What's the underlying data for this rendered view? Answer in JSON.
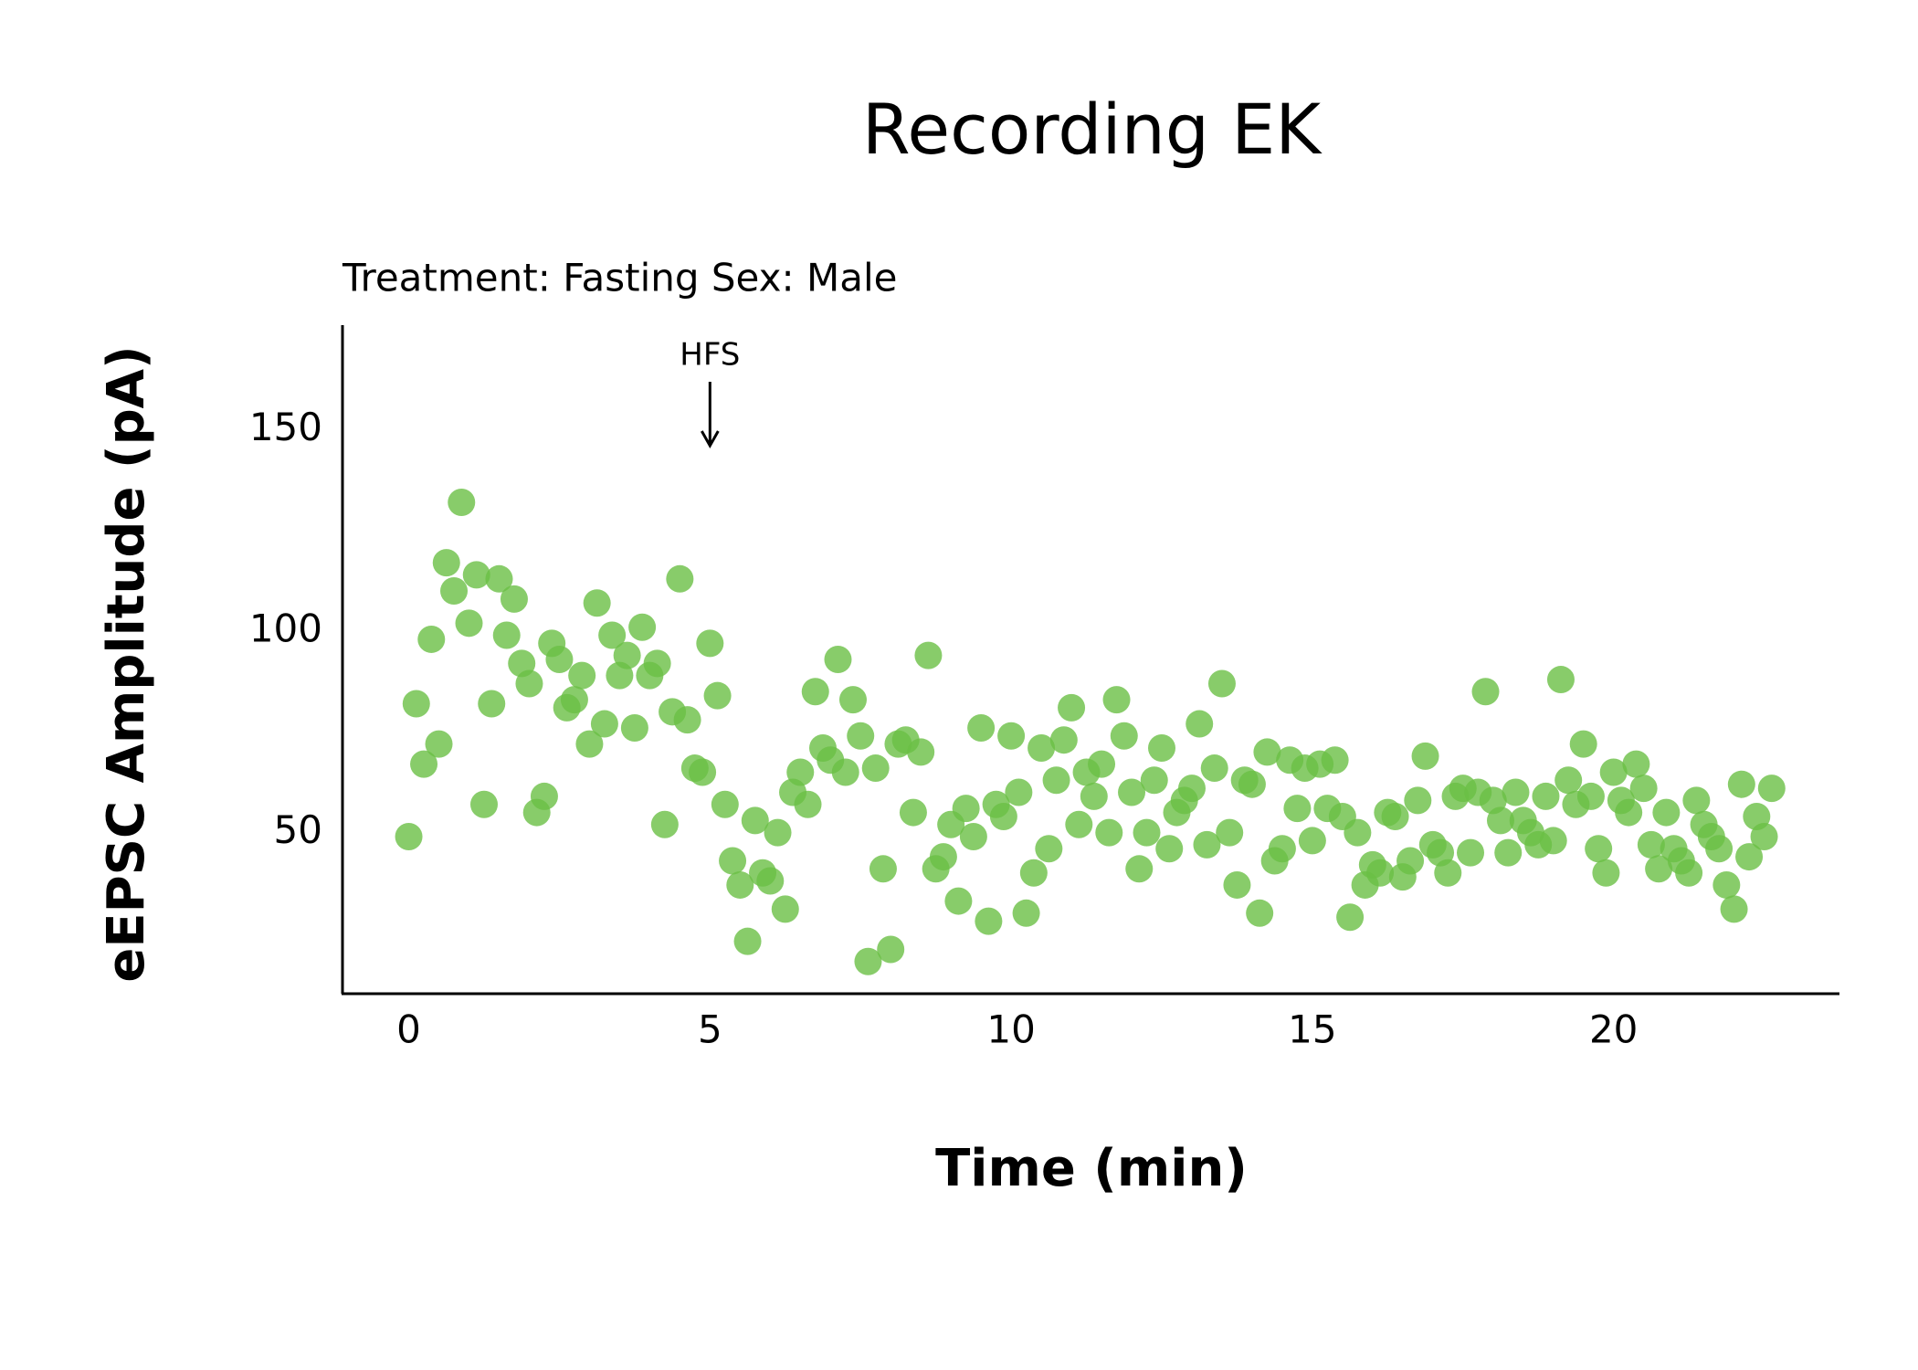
{
  "chart_data": {
    "type": "scatter",
    "title": "Recording EK",
    "subtitle": "Treatment: Fasting  Sex: Male",
    "x_label": "Time (min)",
    "y_label": "eEPSC Amplitude (pA)",
    "annotations": [
      {
        "text": "HFS",
        "x": 5
      }
    ],
    "xlim": [
      -1.1,
      23.75
    ],
    "ylim": [
      10,
      176
    ],
    "xticks": [
      0,
      5,
      10,
      15,
      20
    ],
    "yticks": [
      50,
      100,
      150
    ],
    "grid": false,
    "series": [
      {
        "color": "#6abf45",
        "x": [
          0,
          0.125,
          0.25,
          0.375,
          0.5,
          0.625,
          0.75,
          0.875,
          1,
          1.125,
          1.25,
          1.375,
          1.5,
          1.625,
          1.75,
          1.875,
          2,
          2.125,
          2.25,
          2.375,
          2.5,
          2.625,
          2.75,
          2.875,
          3,
          3.125,
          3.25,
          3.375,
          3.5,
          3.625,
          3.75,
          3.875,
          4,
          4.125,
          4.25,
          4.375,
          4.5,
          4.625,
          4.75,
          4.875,
          5,
          5.125,
          5.25,
          5.375,
          5.5,
          5.625,
          5.75,
          5.875,
          6,
          6.125,
          6.25,
          6.375,
          6.5,
          6.625,
          6.75,
          6.875,
          7,
          7.125,
          7.25,
          7.375,
          7.5,
          7.625,
          7.75,
          7.875,
          8,
          8.125,
          8.25,
          8.375,
          8.5,
          8.625,
          8.75,
          8.875,
          9,
          9.125,
          9.25,
          9.375,
          9.5,
          9.625,
          9.75,
          9.875,
          10,
          10.125,
          10.25,
          10.375,
          10.5,
          10.625,
          10.75,
          10.875,
          11,
          11.125,
          11.25,
          11.375,
          11.5,
          11.625,
          11.75,
          11.875,
          12,
          12.125,
          12.25,
          12.375,
          12.5,
          12.625,
          12.75,
          12.875,
          13,
          13.125,
          13.25,
          13.375,
          13.5,
          13.625,
          13.75,
          13.875,
          14,
          14.125,
          14.25,
          14.375,
          14.5,
          14.625,
          14.75,
          14.875,
          15,
          15.125,
          15.25,
          15.375,
          15.5,
          15.625,
          15.75,
          15.875,
          16,
          16.125,
          16.25,
          16.375,
          16.5,
          16.625,
          16.75,
          16.875,
          17,
          17.125,
          17.25,
          17.375,
          17.5,
          17.625,
          17.75,
          17.875,
          18,
          18.125,
          18.25,
          18.375,
          18.5,
          18.625,
          18.75,
          18.875,
          19,
          19.125,
          19.25,
          19.375,
          19.5,
          19.625,
          19.75,
          19.875,
          20,
          20.125,
          20.25,
          20.375,
          20.5,
          20.625,
          20.75,
          20.875,
          21,
          21.125,
          21.25,
          21.375,
          21.5,
          21.625,
          21.75,
          21.875,
          22,
          22.125,
          22.25,
          22.375,
          22.5,
          22.625
        ],
        "values": [
          49,
          82,
          67,
          98,
          72,
          117,
          110,
          132,
          102,
          114,
          57,
          82,
          113,
          99,
          108,
          92,
          87,
          55,
          59,
          97,
          93,
          81,
          83,
          89,
          72,
          107,
          77,
          99,
          89,
          94,
          76,
          101,
          89,
          92,
          52,
          80,
          113,
          78,
          66,
          65,
          97,
          84,
          57,
          43,
          37,
          23,
          53,
          40,
          38,
          50,
          31,
          60,
          65,
          57,
          85,
          71,
          68,
          93,
          65,
          83,
          74,
          18,
          66,
          41,
          21,
          72,
          73,
          55,
          70,
          94,
          41,
          44,
          52,
          33,
          56,
          49,
          76,
          28,
          57,
          54,
          74,
          60,
          30,
          40,
          71,
          46,
          63,
          73,
          81,
          52,
          65,
          59,
          67,
          50,
          83,
          74,
          60,
          41,
          50,
          63,
          71,
          46,
          55,
          58,
          61,
          77,
          47,
          66,
          87,
          50,
          37,
          63,
          62,
          30,
          70,
          43,
          46,
          68,
          56,
          66,
          48,
          67,
          56,
          68,
          54,
          29,
          50,
          37,
          42,
          40,
          55,
          54,
          39,
          43,
          58,
          69,
          47,
          45,
          40,
          59,
          61,
          45,
          60,
          85,
          58,
          53,
          45,
          60,
          53,
          50,
          47,
          59,
          48,
          88,
          63,
          57,
          72,
          59,
          46,
          40,
          65,
          58,
          55,
          67,
          61,
          47,
          41,
          55,
          46,
          43,
          40,
          58,
          52,
          49,
          46,
          37,
          31,
          62,
          44,
          54,
          49,
          61
        ]
      }
    ]
  }
}
